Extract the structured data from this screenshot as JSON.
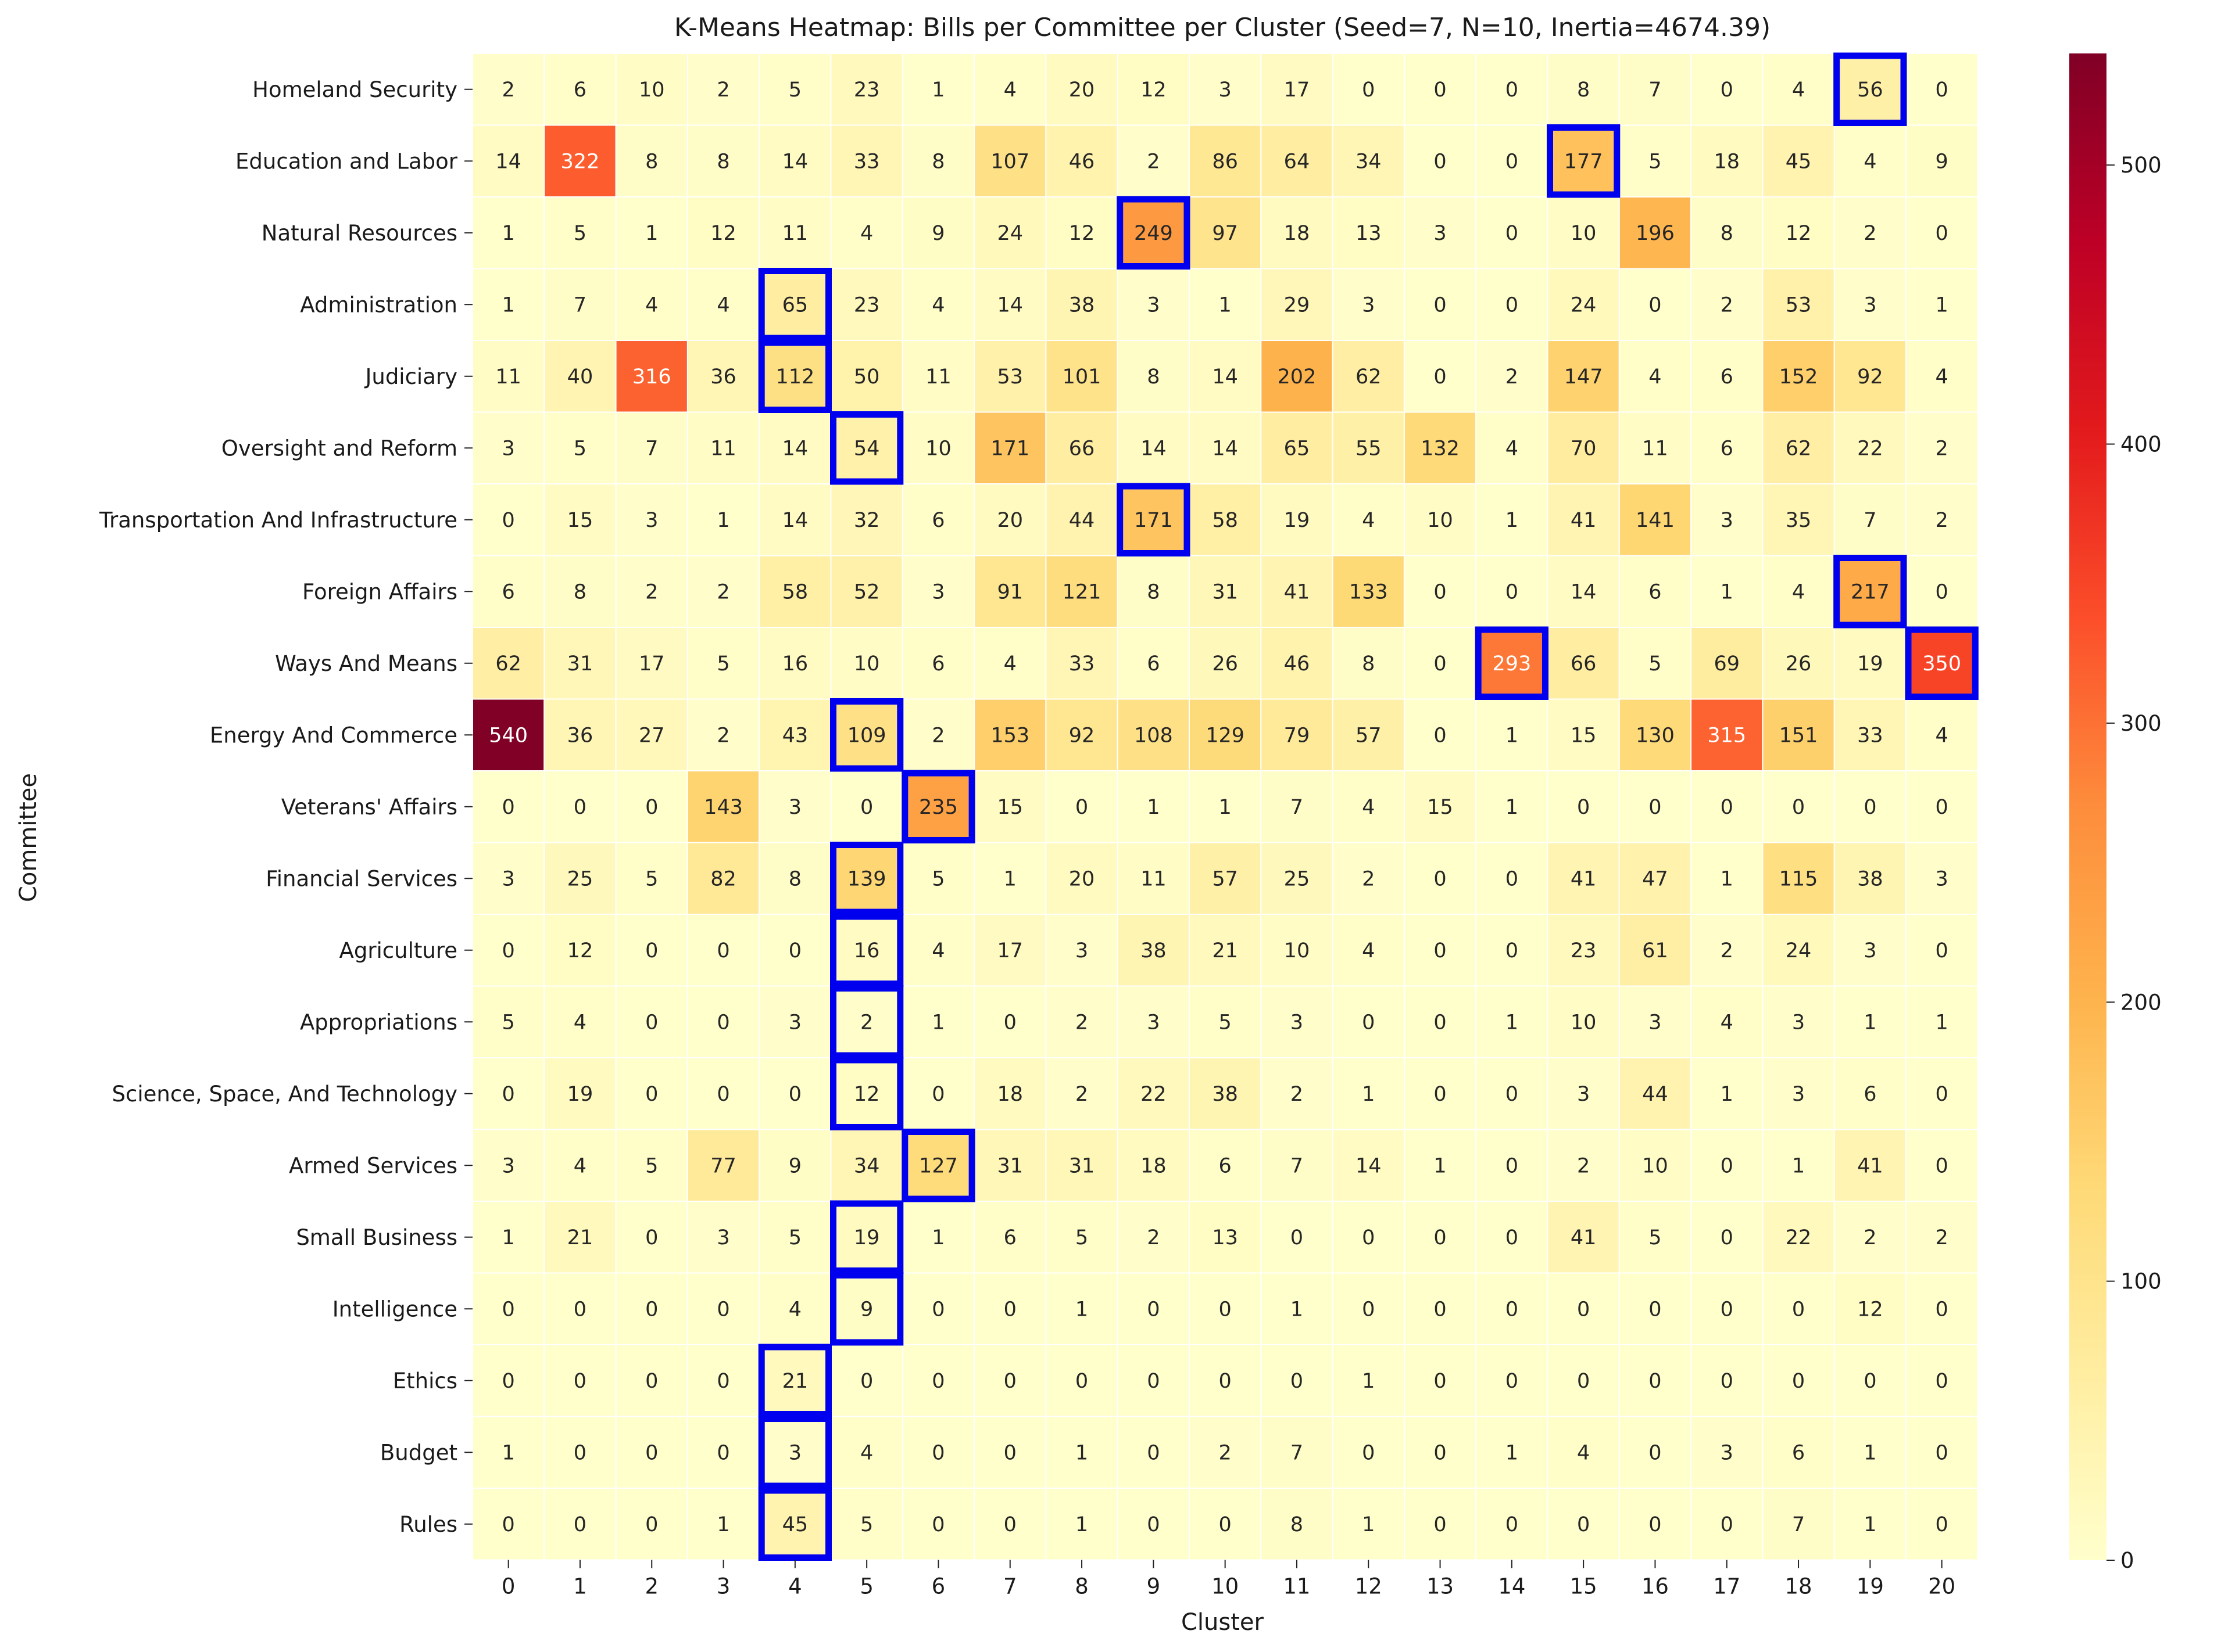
{
  "chart_data": {
    "type": "heatmap",
    "title": "K-Means Heatmap: Bills per Committee per Cluster (Seed=7, N=10, Inertia=4674.39)",
    "xlabel": "Cluster",
    "ylabel": "Committee",
    "x": [
      "0",
      "1",
      "2",
      "3",
      "4",
      "5",
      "6",
      "7",
      "8",
      "9",
      "10",
      "11",
      "12",
      "13",
      "14",
      "15",
      "16",
      "17",
      "18",
      "19",
      "20"
    ],
    "y": [
      "Homeland Security",
      "Education and Labor",
      "Natural Resources",
      "Administration",
      "Judiciary",
      "Oversight and Reform",
      "Transportation And Infrastructure",
      "Foreign Affairs",
      "Ways And Means",
      "Energy And Commerce",
      "Veterans' Affairs",
      "Financial Services",
      "Agriculture",
      "Appropriations",
      "Science, Space, And Technology",
      "Armed Services",
      "Small Business",
      "Intelligence",
      "Ethics",
      "Budget",
      "Rules"
    ],
    "values": [
      [
        2,
        6,
        10,
        2,
        5,
        23,
        1,
        4,
        20,
        12,
        3,
        17,
        0,
        0,
        0,
        8,
        7,
        0,
        4,
        56,
        0
      ],
      [
        14,
        322,
        8,
        8,
        14,
        33,
        8,
        107,
        46,
        2,
        86,
        64,
        34,
        0,
        0,
        177,
        5,
        18,
        45,
        4,
        9
      ],
      [
        1,
        5,
        1,
        12,
        11,
        4,
        9,
        24,
        12,
        249,
        97,
        18,
        13,
        3,
        0,
        10,
        196,
        8,
        12,
        2,
        0
      ],
      [
        1,
        7,
        4,
        4,
        65,
        23,
        4,
        14,
        38,
        3,
        1,
        29,
        3,
        0,
        0,
        24,
        0,
        2,
        53,
        3,
        1
      ],
      [
        11,
        40,
        316,
        36,
        112,
        50,
        11,
        53,
        101,
        8,
        14,
        202,
        62,
        0,
        2,
        147,
        4,
        6,
        152,
        92,
        4
      ],
      [
        3,
        5,
        7,
        11,
        14,
        54,
        10,
        171,
        66,
        14,
        14,
        65,
        55,
        132,
        4,
        70,
        11,
        6,
        62,
        22,
        2
      ],
      [
        0,
        15,
        3,
        1,
        14,
        32,
        6,
        20,
        44,
        171,
        58,
        19,
        4,
        10,
        1,
        41,
        141,
        3,
        35,
        7,
        2
      ],
      [
        6,
        8,
        2,
        2,
        58,
        52,
        3,
        91,
        121,
        8,
        31,
        41,
        133,
        0,
        0,
        14,
        6,
        1,
        4,
        217,
        0
      ],
      [
        62,
        31,
        17,
        5,
        16,
        10,
        6,
        4,
        33,
        6,
        26,
        46,
        8,
        0,
        293,
        66,
        5,
        69,
        26,
        19,
        350
      ],
      [
        540,
        36,
        27,
        2,
        43,
        109,
        2,
        153,
        92,
        108,
        129,
        79,
        57,
        0,
        1,
        15,
        130,
        315,
        151,
        33,
        4
      ],
      [
        0,
        0,
        0,
        143,
        3,
        0,
        235,
        15,
        0,
        1,
        1,
        7,
        4,
        15,
        1,
        0,
        0,
        0,
        0,
        0,
        0
      ],
      [
        3,
        25,
        5,
        82,
        8,
        139,
        5,
        1,
        20,
        11,
        57,
        25,
        2,
        0,
        0,
        41,
        47,
        1,
        115,
        38,
        3
      ],
      [
        0,
        12,
        0,
        0,
        0,
        16,
        4,
        17,
        3,
        38,
        21,
        10,
        4,
        0,
        0,
        23,
        61,
        2,
        24,
        3,
        0
      ],
      [
        5,
        4,
        0,
        0,
        3,
        2,
        1,
        0,
        2,
        3,
        5,
        3,
        0,
        0,
        1,
        10,
        3,
        4,
        3,
        1,
        1
      ],
      [
        0,
        19,
        0,
        0,
        0,
        12,
        0,
        18,
        2,
        22,
        38,
        2,
        1,
        0,
        0,
        3,
        44,
        1,
        3,
        6,
        0
      ],
      [
        3,
        4,
        5,
        77,
        9,
        34,
        127,
        31,
        31,
        18,
        6,
        7,
        14,
        1,
        0,
        2,
        10,
        0,
        1,
        41,
        0
      ],
      [
        1,
        21,
        0,
        3,
        5,
        19,
        1,
        6,
        5,
        2,
        13,
        0,
        0,
        0,
        0,
        41,
        5,
        0,
        22,
        2,
        2
      ],
      [
        0,
        0,
        0,
        0,
        4,
        9,
        0,
        0,
        1,
        0,
        0,
        1,
        0,
        0,
        0,
        0,
        0,
        0,
        0,
        12,
        0
      ],
      [
        0,
        0,
        0,
        0,
        21,
        0,
        0,
        0,
        0,
        0,
        0,
        0,
        1,
        0,
        0,
        0,
        0,
        0,
        0,
        0,
        0
      ],
      [
        1,
        0,
        0,
        0,
        3,
        4,
        0,
        0,
        1,
        0,
        2,
        7,
        0,
        0,
        1,
        4,
        0,
        3,
        6,
        1,
        0
      ],
      [
        0,
        0,
        0,
        1,
        45,
        5,
        0,
        0,
        1,
        0,
        0,
        8,
        1,
        0,
        0,
        0,
        0,
        0,
        7,
        1,
        0
      ]
    ],
    "highlighted_cells": [
      [
        0,
        19
      ],
      [
        1,
        15
      ],
      [
        2,
        9
      ],
      [
        3,
        4
      ],
      [
        4,
        4
      ],
      [
        5,
        5
      ],
      [
        6,
        9
      ],
      [
        7,
        19
      ],
      [
        8,
        14
      ],
      [
        8,
        20
      ],
      [
        9,
        5
      ],
      [
        10,
        6
      ],
      [
        11,
        5
      ],
      [
        12,
        5
      ],
      [
        13,
        5
      ],
      [
        14,
        5
      ],
      [
        15,
        6
      ],
      [
        16,
        5
      ],
      [
        17,
        5
      ],
      [
        18,
        4
      ],
      [
        19,
        4
      ],
      [
        20,
        4
      ]
    ],
    "highlight_color": "#0000ee",
    "vmin": 0,
    "vmax": 540,
    "colormap": "YlOrRd",
    "colorbar_ticks": [
      0,
      100,
      200,
      300,
      400,
      500
    ],
    "grid": true
  }
}
